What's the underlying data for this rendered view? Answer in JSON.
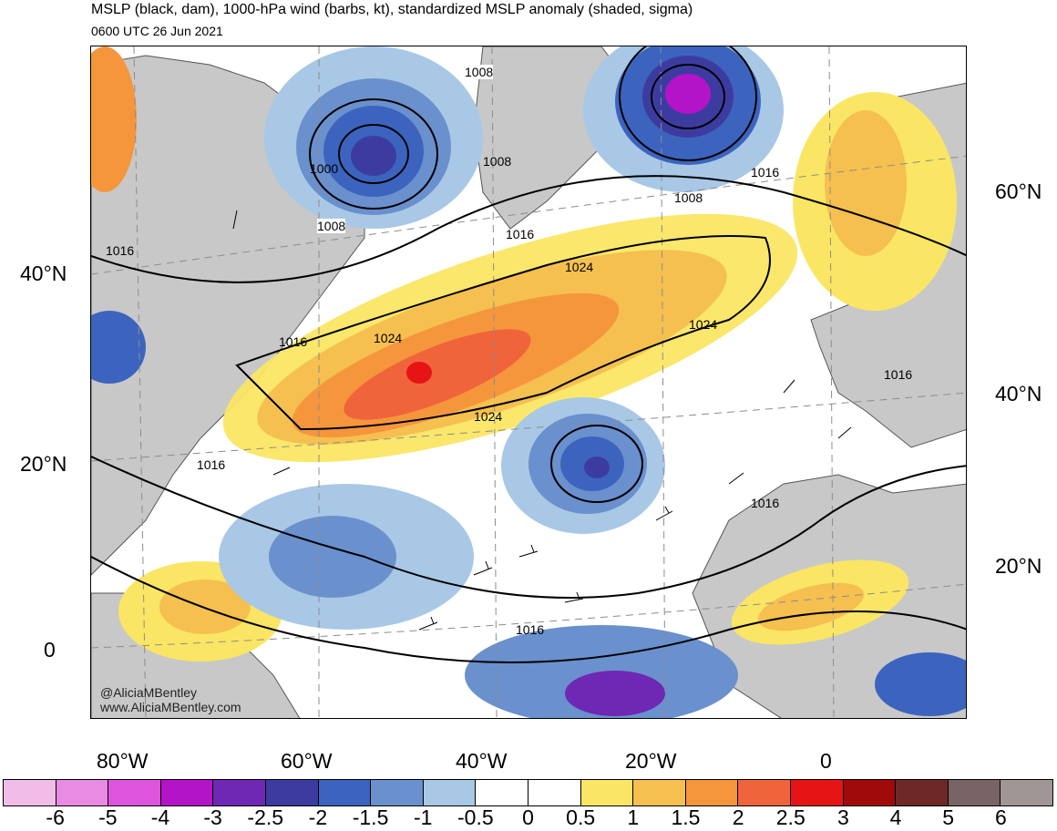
{
  "header": {
    "title": "MSLP (black, dam), 1000-hPa wind (barbs, kt), standardized MSLP anomaly (shaded, sigma)",
    "valid_time": "0600 UTC 26 Jun 2021"
  },
  "axes": {
    "lat_left": [
      "40°N",
      "20°N",
      "0"
    ],
    "lat_right": [
      "60°N",
      "40°N",
      "20°N"
    ],
    "lon_bottom": [
      "80°W",
      "60°W",
      "40°W",
      "20°W",
      "0"
    ]
  },
  "contour_labels": [
    "1008",
    "1000",
    "1008",
    "1008",
    "1016",
    "1008",
    "1016",
    "1016",
    "1024",
    "1016",
    "1024",
    "1024",
    "1024",
    "1016",
    "1016",
    "1016",
    "1016"
  ],
  "credits": {
    "handle": "@AliciaMBentley",
    "website": "www.AliciaMBentley.com"
  },
  "colorbar": {
    "colors": [
      "#f0bde8",
      "#e98ae3",
      "#dc55dc",
      "#b414c8",
      "#6e28b4",
      "#3c3ca0",
      "#3c64be",
      "#6a90cd",
      "#a8c8e6",
      "#ffffff",
      "#ffffff",
      "#fae664",
      "#f5c050",
      "#f5963c",
      "#f0643c",
      "#e61414",
      "#a00a0a",
      "#6e2828",
      "#786464",
      "#a09696"
    ],
    "labels": [
      "-6",
      "-5",
      "-4",
      "-3",
      "-2.5",
      "-2",
      "-1.5",
      "-1",
      "-0.5",
      "0",
      "0.5",
      "1",
      "1.5",
      "2",
      "2.5",
      "3",
      "4",
      "5",
      "6"
    ]
  },
  "legend_colors": {
    "land": "#c8c8c8",
    "contour": "#000000",
    "graticule": "#8c8c8c"
  }
}
